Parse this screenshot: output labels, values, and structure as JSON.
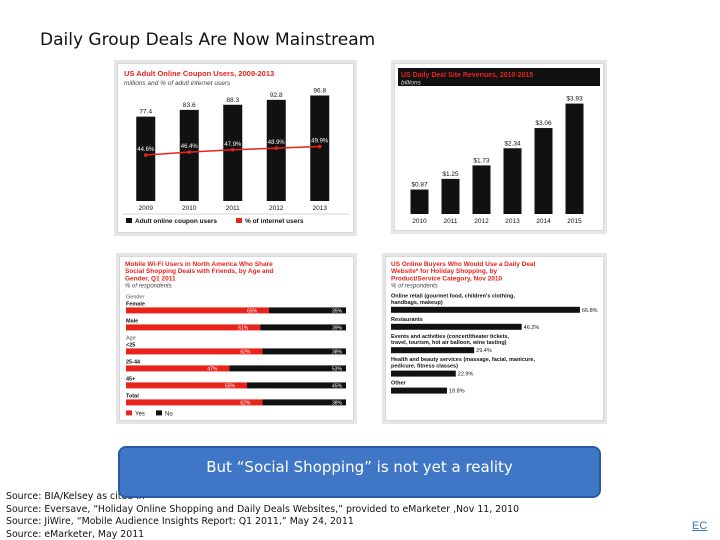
{
  "slide": {
    "title": "Daily Group Deals Are Now Mainstream",
    "callout": "But “Social Shopping” is not yet a reality",
    "sources": [
      "Source: BIA/Kelsey as cited in",
      "Source: Eversave, “Holiday Online Shopping and Daily Deals Websites,” provided to eMarketer ,Nov 11, 2010",
      "Source: JiWire, “Mobile Audience Insights Report: Q1 2011,” May 24, 2011",
      "Source: eMarketer, May 2011"
    ],
    "page_number": "EC"
  },
  "colors": {
    "accent_red": "#e8231c",
    "bar_black": "#111111",
    "callout_blue": "#3f76c6"
  },
  "chart_data": [
    {
      "type": "bar",
      "title": "US Adult Online Coupon Users, 2009-2013",
      "subtitle": "millions and % of adult internet users",
      "categories": [
        "2009",
        "2010",
        "2011",
        "2012",
        "2013"
      ],
      "series": [
        {
          "name": "Adult online coupon users",
          "values": [
            77.4,
            83.6,
            88.3,
            92.8,
            96.8
          ]
        },
        {
          "name": "% of internet users",
          "values": [
            44.6,
            46.4,
            47.9,
            48.9,
            49.9
          ]
        }
      ],
      "value_labels": [
        "77.4",
        "83.6",
        "88.3",
        "92.8",
        "96.8"
      ],
      "pct_labels": [
        "44.6%",
        "46.4%",
        "47.9%",
        "48.9%",
        "49.9%"
      ],
      "legend": [
        "Adult online coupon users",
        "% of internet users"
      ],
      "ylim": [
        0,
        100
      ]
    },
    {
      "type": "bar",
      "title": "US Daily Deal Site Revenues, 2010-2015",
      "subtitle": "billions",
      "categories": [
        "2010",
        "2011",
        "2012",
        "2013",
        "2014",
        "2015"
      ],
      "values": [
        0.87,
        1.25,
        1.73,
        2.34,
        3.06,
        3.93
      ],
      "value_labels": [
        "$0.87",
        "$1.25",
        "$1.73",
        "$2.34",
        "$3.06",
        "$3.93"
      ],
      "ylim": [
        0,
        4.2
      ]
    },
    {
      "type": "bar",
      "title": "Mobile Wi-Fi Users in North America Who Share Social Shopping Deals with Friends, by Age and Gender, Q1 2011",
      "subtitle": "% of respondents",
      "groups": [
        {
          "label": "Gender",
          "is_header": true
        },
        {
          "label": "Female",
          "yes": 65,
          "no": 35
        },
        {
          "label": "Male",
          "yes": 61,
          "no": 39
        },
        {
          "label": "Age",
          "is_header": true
        },
        {
          "label": "<25",
          "yes": 62,
          "no": 38
        },
        {
          "label": "25-44",
          "yes": 47,
          "no": 53
        },
        {
          "label": "45+",
          "yes": 55,
          "no": 45
        },
        {
          "label": "Total",
          "yes": 62,
          "no": 38
        }
      ],
      "legend": [
        "Yes",
        "No"
      ],
      "xlim": [
        0,
        100
      ]
    },
    {
      "type": "bar",
      "title": "US Online Buyers Who Would Use a Daily Deal Website* for Holiday Shopping, by Product/Service Category, Nov 2010",
      "subtitle": "% of respondents",
      "categories": [
        "Online retail (gourmet food, children's clothing, handbags, makeup)",
        "Restaurants",
        "Events and activities (concert/theater tickets, travel, tourism, hot air balloon, wine tasting)",
        "Health and beauty services (massage, facial, manicure, pedicure, fitness classes)",
        "Other"
      ],
      "values": [
        66.8,
        46.2,
        29.4,
        22.9,
        19.8
      ],
      "value_labels": [
        "66.8%",
        "46.2%",
        "29.4%",
        "22.9%",
        "19.8%"
      ],
      "xlim": [
        0,
        70
      ]
    }
  ]
}
